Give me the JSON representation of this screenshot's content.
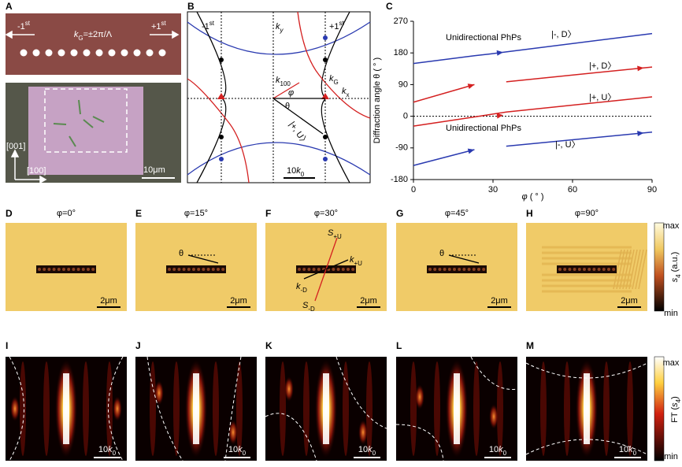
{
  "chart_data": {
    "type": "line",
    "letter": "C",
    "x_label": [
      {
        "text": "φ"
      },
      {
        "text": " ( ° )"
      }
    ],
    "y_label": "Diffraction angle θ ( ° )",
    "x": [
      0,
      23,
      29,
      35,
      90
    ],
    "xlim": [
      0,
      90
    ],
    "xticks": [
      0,
      30,
      60,
      90
    ],
    "ylim": [
      -180,
      270
    ],
    "yticks": [
      -180,
      -90,
      0,
      90,
      180,
      270
    ],
    "series": [
      {
        "name": "|-, D〉",
        "color": "#2a3ab0",
        "values": [
          150,
          172,
          177,
          183,
          235
        ]
      },
      {
        "name": "|+, D〉",
        "color": "#d42020",
        "values": [
          40,
          90,
          null,
          98,
          140
        ]
      },
      {
        "name": "|+, U〉",
        "color": "#d42020",
        "values": [
          -28,
          -2,
          5,
          12,
          55
        ]
      },
      {
        "name": "|-, U〉",
        "color": "#2a3ab0",
        "values": [
          -140,
          -95,
          null,
          -85,
          -45
        ]
      }
    ],
    "annotations": [
      {
        "text": "Unidirectional PhPs",
        "color": "#2a3ab0"
      },
      {
        "text": "Unidirectional PhPs",
        "color": "#d42020"
      }
    ]
  },
  "panels": {
    "A": {
      "letter": "A",
      "minus": [
        {
          "text": "-1"
        },
        {
          "sup": "st"
        }
      ],
      "kg": [
        {
          "text": "k"
        },
        {
          "sub": "G"
        },
        {
          "text": "=±2π/Λ"
        }
      ],
      "plus": [
        {
          "text": "+1"
        },
        {
          "sup": "st"
        }
      ],
      "dir_v": "[001]",
      "dir_h": "[100]",
      "scale": "10μm"
    },
    "B": {
      "letter": "B",
      "minus": [
        {
          "text": "-1"
        },
        {
          "sup": "st"
        }
      ],
      "plus": [
        {
          "text": "+1"
        },
        {
          "sup": "st"
        }
      ],
      "ky": [
        {
          "text": "k"
        },
        {
          "sub": "y"
        }
      ],
      "kx": [
        {
          "text": "k"
        },
        {
          "sub": "x"
        }
      ],
      "kg": [
        {
          "text": "k"
        },
        {
          "sub": "G"
        }
      ],
      "k100": [
        {
          "text": "k"
        },
        {
          "sub": "100"
        }
      ],
      "phi": "φ",
      "theta": "θ",
      "state": "|+, U〉",
      "scale": [
        {
          "text": "10"
        },
        {
          "text": "k"
        },
        {
          "sub": "0"
        }
      ]
    },
    "real": [
      {
        "letter": "D",
        "title": "φ=0°",
        "scale": "2μm"
      },
      {
        "letter": "E",
        "title": "φ=15°",
        "scale": "2μm",
        "theta": "θ"
      },
      {
        "letter": "F",
        "title": "φ=30°",
        "scale": "2μm",
        "s_up": [
          {
            "text": "S"
          },
          {
            "sub": "+U"
          }
        ],
        "k_up": [
          {
            "text": "k"
          },
          {
            "sub": "+U"
          }
        ],
        "k_down": [
          {
            "text": "k"
          },
          {
            "sub": "-D"
          }
        ],
        "s_down": [
          {
            "text": "S"
          },
          {
            "sub": "-D"
          }
        ]
      },
      {
        "letter": "G",
        "title": "φ=45°",
        "scale": "2μm",
        "theta": "θ"
      },
      {
        "letter": "H",
        "title": "φ=90°",
        "scale": "2μm"
      }
    ],
    "real_bar": {
      "max": "max",
      "min": "min",
      "label": [
        {
          "text": "s"
        },
        {
          "sub": "4"
        },
        {
          "text": " (a.u.)"
        }
      ]
    },
    "fourier": [
      {
        "letter": "I",
        "scale": [
          {
            "text": "10"
          },
          {
            "text": "k"
          },
          {
            "sub": "0"
          }
        ]
      },
      {
        "letter": "J",
        "scale": [
          {
            "text": "10"
          },
          {
            "text": "k"
          },
          {
            "sub": "0"
          }
        ]
      },
      {
        "letter": "K",
        "scale": [
          {
            "text": "10"
          },
          {
            "text": "k"
          },
          {
            "sub": "0"
          }
        ]
      },
      {
        "letter": "L",
        "scale": [
          {
            "text": "10"
          },
          {
            "text": "k"
          },
          {
            "sub": "0"
          }
        ]
      },
      {
        "letter": "M",
        "scale": [
          {
            "text": "10"
          },
          {
            "text": "k"
          },
          {
            "sub": "0"
          }
        ]
      }
    ],
    "fourier_bar": {
      "max": "max",
      "min": "min",
      "label": [
        {
          "text": "FT ("
        },
        {
          "text": "s"
        },
        {
          "sub": "4"
        },
        {
          "text": ")"
        }
      ]
    }
  }
}
